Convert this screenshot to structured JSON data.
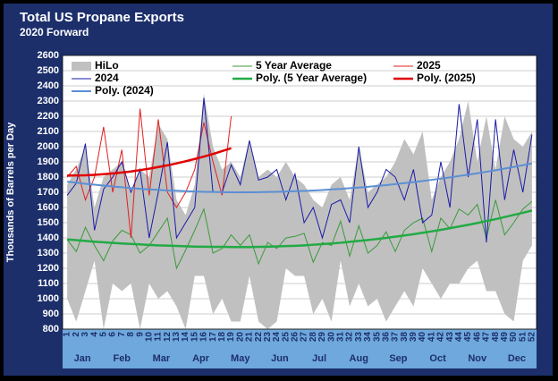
{
  "chart_data": {
    "type": "line",
    "title": "Total US Propane Exports",
    "subtitle": "2020 Forward",
    "y_label": "Thousands of Barrels per Day",
    "categories": [
      1,
      2,
      3,
      4,
      5,
      6,
      7,
      8,
      9,
      10,
      11,
      12,
      13,
      14,
      15,
      16,
      17,
      18,
      19,
      20,
      21,
      22,
      23,
      24,
      25,
      26,
      27,
      28,
      29,
      30,
      31,
      32,
      33,
      34,
      35,
      36,
      37,
      38,
      39,
      40,
      41,
      42,
      43,
      44,
      45,
      46,
      47,
      48,
      49,
      50,
      51,
      52
    ],
    "month_labels": [
      "Jan",
      "Feb",
      "Mar",
      "Apr",
      "May",
      "Jun",
      "Jul",
      "Aug",
      "Sep",
      "Oct",
      "Nov",
      "Dec"
    ],
    "ylim": [
      800,
      2600
    ],
    "yticks": [
      800,
      900,
      1000,
      1100,
      1200,
      1300,
      1400,
      1500,
      1600,
      1700,
      1800,
      1900,
      2000,
      2100,
      2200,
      2300,
      2400,
      2500,
      2600
    ],
    "grid": true,
    "band": {
      "name": "HiLo",
      "color": "#c0c0c0",
      "high": [
        1750,
        1850,
        2000,
        1600,
        1800,
        1850,
        1900,
        1700,
        1850,
        1800,
        2150,
        2050,
        1650,
        1550,
        1750,
        2350,
        2000,
        1850,
        1900,
        1800,
        2050,
        1800,
        1850,
        1800,
        1900,
        1800,
        1750,
        1650,
        1600,
        1750,
        1800,
        1650,
        2000,
        1700,
        1750,
        1800,
        1900,
        2050,
        1950,
        2100,
        1650,
        1800,
        1900,
        2050,
        2300,
        1900,
        2200,
        1850,
        2200,
        2050,
        2000,
        2100
      ],
      "low": [
        1000,
        850,
        1050,
        1250,
        800,
        1100,
        1050,
        1100,
        800,
        1100,
        1000,
        1050,
        950,
        800,
        1150,
        1150,
        900,
        1000,
        850,
        850,
        1150,
        850,
        800,
        850,
        1200,
        1150,
        1150,
        900,
        1000,
        850,
        1250,
        950,
        1100,
        950,
        1000,
        850,
        950,
        1050,
        950,
        1200,
        1100,
        1000,
        1100,
        1100,
        1200,
        1250,
        1050,
        1050,
        900,
        850,
        1250,
        1350
      ]
    },
    "series": [
      {
        "name": "5 Year Average",
        "color": "#3a9a3a",
        "width": 1,
        "values": [
          1390,
          1310,
          1470,
          1350,
          1250,
          1380,
          1450,
          1420,
          1300,
          1350,
          1440,
          1530,
          1200,
          1320,
          1450,
          1590,
          1300,
          1330,
          1420,
          1350,
          1420,
          1230,
          1370,
          1330,
          1400,
          1410,
          1430,
          1240,
          1370,
          1350,
          1510,
          1280,
          1480,
          1300,
          1350,
          1440,
          1310,
          1450,
          1500,
          1530,
          1310,
          1530,
          1460,
          1590,
          1550,
          1620,
          1400,
          1650,
          1420,
          1500,
          1590,
          1640
        ]
      },
      {
        "name": "2025",
        "color": "#e02020",
        "width": 1,
        "values": [
          1800,
          1870,
          1650,
          1800,
          2130,
          1700,
          1980,
          1400,
          2250,
          1680,
          2180,
          1700,
          1600,
          1700,
          1850,
          2160,
          1900,
          1680,
          2200,
          null,
          null,
          null,
          null,
          null,
          null,
          null,
          null,
          null,
          null,
          null,
          null,
          null,
          null,
          null,
          null,
          null,
          null,
          null,
          null,
          null,
          null,
          null,
          null,
          null,
          null,
          null,
          null,
          null,
          null,
          null,
          null,
          null
        ]
      },
      {
        "name": "2024",
        "color": "#1a1aa8",
        "width": 1,
        "values": [
          1680,
          1760,
          2020,
          1450,
          1720,
          1800,
          1900,
          1700,
          1850,
          1400,
          1700,
          2030,
          1400,
          1500,
          1600,
          2320,
          1700,
          1700,
          1880,
          1750,
          2040,
          1780,
          1800,
          1850,
          1650,
          1820,
          1500,
          1600,
          1400,
          1620,
          1650,
          1500,
          2000,
          1600,
          1700,
          1850,
          1800,
          1650,
          1850,
          1500,
          1550,
          1900,
          1600,
          2280,
          1800,
          2180,
          1370,
          2180,
          1650,
          1980,
          1700,
          2080
        ]
      },
      {
        "name": "Poly. (5 Year Average)",
        "color": "#22aa44",
        "width": 2.5,
        "values": [
          1390,
          1385,
          1380,
          1375,
          1371,
          1367,
          1363,
          1360,
          1357,
          1354,
          1351,
          1349,
          1347,
          1345,
          1343,
          1342,
          1341,
          1341,
          1340,
          1340,
          1340,
          1341,
          1342,
          1344,
          1346,
          1348,
          1351,
          1355,
          1359,
          1363,
          1368,
          1374,
          1380,
          1386,
          1393,
          1400,
          1408,
          1416,
          1424,
          1434,
          1443,
          1453,
          1464,
          1475,
          1486,
          1498,
          1511,
          1523,
          1537,
          1551,
          1565,
          1580
        ]
      },
      {
        "name": "Poly. (2025)",
        "color": "#e00000",
        "width": 2.5,
        "values": [
          1810,
          1811,
          1812,
          1815,
          1819,
          1824,
          1830,
          1837,
          1846,
          1855,
          1866,
          1877,
          1890,
          1904,
          1919,
          1935,
          1952,
          1971,
          1990,
          null,
          null,
          null,
          null,
          null,
          null,
          null,
          null,
          null,
          null,
          null,
          null,
          null,
          null,
          null,
          null,
          null,
          null,
          null,
          null,
          null,
          null,
          null,
          null,
          null,
          null,
          null,
          null,
          null,
          null,
          null,
          null,
          null
        ]
      },
      {
        "name": "Poly. (2024)",
        "color": "#5b8fd4",
        "width": 2,
        "values": [
          1770,
          1763,
          1756,
          1750,
          1744,
          1738,
          1733,
          1728,
          1723,
          1719,
          1716,
          1712,
          1710,
          1707,
          1705,
          1703,
          1702,
          1701,
          1700,
          1700,
          1700,
          1701,
          1702,
          1703,
          1705,
          1707,
          1709,
          1712,
          1715,
          1719,
          1722,
          1727,
          1731,
          1736,
          1742,
          1747,
          1754,
          1760,
          1767,
          1774,
          1782,
          1790,
          1798,
          1807,
          1816,
          1825,
          1835,
          1845,
          1856,
          1867,
          1878,
          1890
        ]
      }
    ]
  }
}
